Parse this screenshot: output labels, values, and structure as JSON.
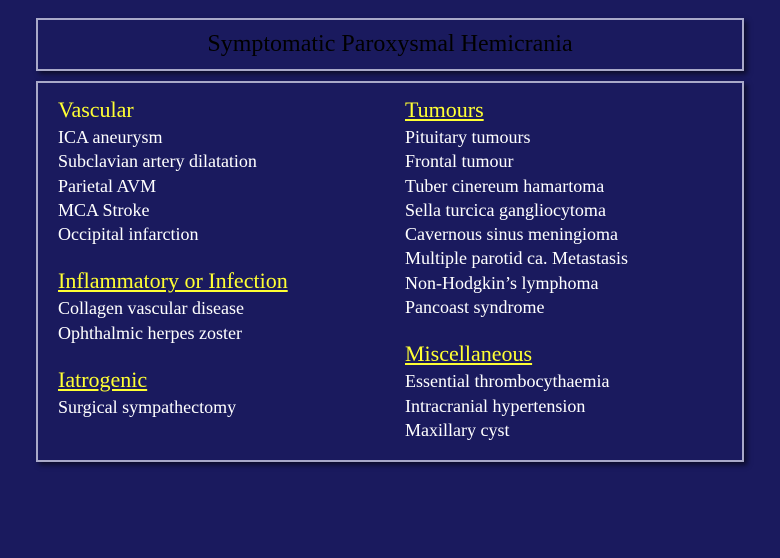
{
  "title": "Symptomatic Paroxysmal Hemicrania",
  "left": {
    "vascular": {
      "heading": "Vascular",
      "items": [
        "ICA aneurysm",
        "Subclavian artery dilatation",
        "Parietal AVM",
        "MCA Stroke",
        "Occipital infarction"
      ]
    },
    "inflammatory": {
      "heading": "Inflammatory or Infection",
      "items": [
        "Collagen vascular disease",
        "Ophthalmic herpes zoster"
      ]
    },
    "iatrogenic": {
      "heading": "Iatrogenic",
      "items": [
        "Surgical sympathectomy"
      ]
    }
  },
  "right": {
    "tumours": {
      "heading": "Tumours",
      "items": [
        "Pituitary tumours",
        "Frontal tumour",
        "Tuber cinereum hamartoma",
        "Sella turcica gangliocytoma",
        "Cavernous sinus meningioma",
        "Multiple parotid ca. Metastasis",
        "Non-Hodgkin’s lymphoma",
        "Pancoast syndrome"
      ]
    },
    "misc": {
      "heading": "Miscellaneous",
      "items": [
        "Essential thrombocythaemia",
        "Intracranial hypertension",
        "Maxillary cyst"
      ]
    }
  },
  "colors": {
    "background": "#1a1a5e",
    "border": "#a9a9c9",
    "heading": "#ffff33",
    "body_text": "#ffffff",
    "title_text": "#000000"
  },
  "fonts": {
    "family": "Times New Roman",
    "title_size_pt": 18,
    "heading_size_pt": 17,
    "item_size_pt": 14
  }
}
